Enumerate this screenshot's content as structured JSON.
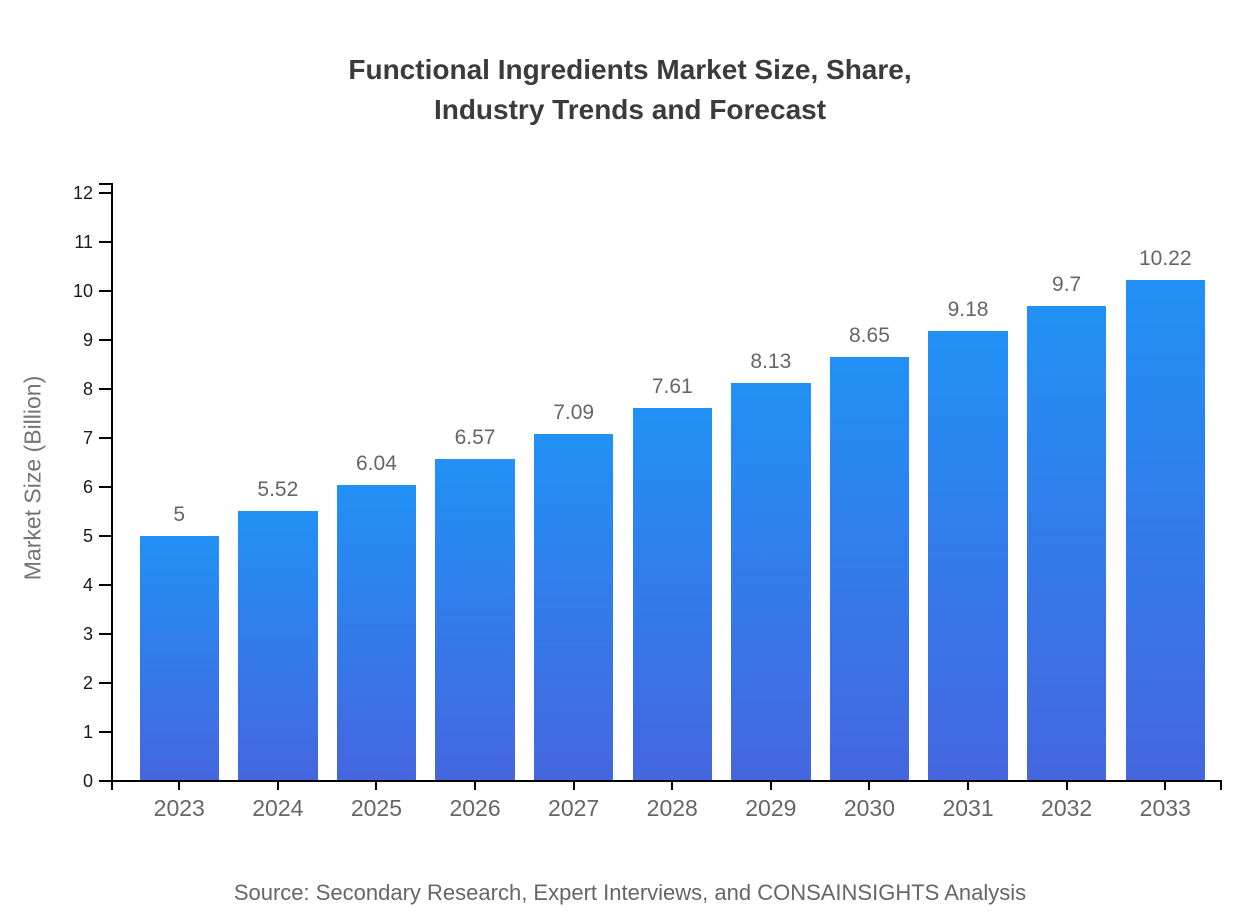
{
  "chart_data": {
    "type": "bar",
    "title": "Functional Ingredients Market Size, Share, Industry Trends and Forecast",
    "title_line1": "Functional Ingredients Market Size, Share,",
    "title_line2": "Industry Trends and Forecast",
    "ylabel": "Market Size (Billion)",
    "xlabel": "",
    "categories": [
      "2023",
      "2024",
      "2025",
      "2026",
      "2027",
      "2028",
      "2029",
      "2030",
      "2031",
      "2032",
      "2033"
    ],
    "values": [
      5,
      5.52,
      6.04,
      6.57,
      7.09,
      7.61,
      8.13,
      8.65,
      9.18,
      9.7,
      10.22
    ],
    "value_labels": [
      "5",
      "5.52",
      "6.04",
      "6.57",
      "7.09",
      "7.61",
      "8.13",
      "8.65",
      "9.18",
      "9.7",
      "10.22"
    ],
    "ylim": [
      0,
      12
    ],
    "ytick_step": 1,
    "yticks": [
      0,
      1,
      2,
      3,
      4,
      5,
      6,
      7,
      8,
      9,
      10,
      11,
      12
    ],
    "grid": false,
    "legend": null,
    "source_note": "Source: Secondary Research, Expert Interviews, and CONSAINSIGHTS Analysis",
    "colors": {
      "bar_gradient_top": "#2191f5",
      "bar_gradient_bottom": "#4566df",
      "axis_line": "#000000",
      "title_text": "#3b3b3b",
      "y_tick_label": "#1a1a1a",
      "category_label": "#666666",
      "value_label": "#666666",
      "axis_title": "#757575",
      "source_text": "#666666",
      "background": "#ffffff"
    }
  }
}
